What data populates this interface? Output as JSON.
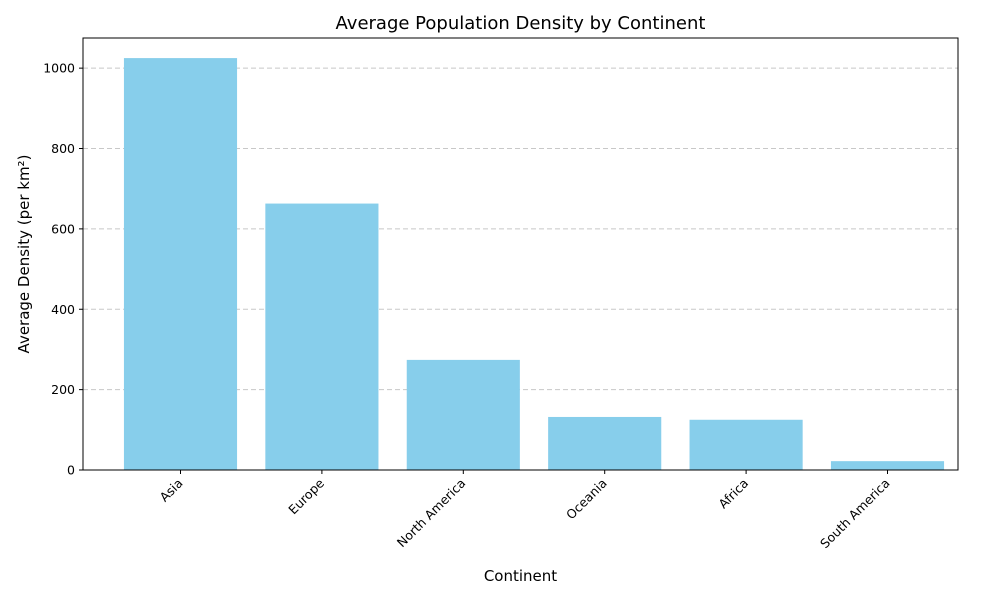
{
  "chart_data": {
    "type": "bar",
    "title": "Average Population Density by Continent",
    "xlabel": "Continent",
    "ylabel": "Average Density (per km²)",
    "categories": [
      "Asia",
      "Europe",
      "North America",
      "Oceania",
      "Africa",
      "South America"
    ],
    "values": [
      1025,
      663,
      274,
      132,
      125,
      22
    ],
    "ylim": [
      0,
      1075
    ],
    "yticks": [
      0,
      200,
      400,
      600,
      800,
      1000
    ],
    "grid": "y-dashed",
    "bar_color": "#87CEEB",
    "legend": "none"
  }
}
